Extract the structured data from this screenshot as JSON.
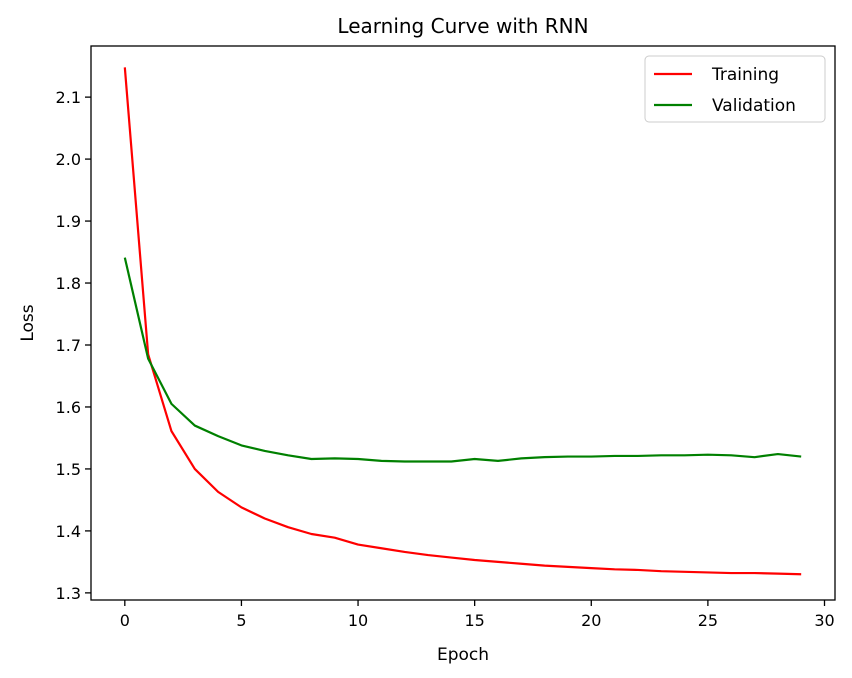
{
  "chart_data": {
    "type": "line",
    "title": "Learning Curve with RNN",
    "xlabel": "Epoch",
    "ylabel": "Loss",
    "xlim": [
      -1.45,
      30.45
    ],
    "ylim": [
      1.2885,
      2.1825
    ],
    "xticks": [
      0,
      5,
      10,
      15,
      20,
      25,
      30
    ],
    "yticks": [
      1.3,
      1.4,
      1.5,
      1.6,
      1.7,
      1.8,
      1.9,
      2.0,
      2.1
    ],
    "grid": false,
    "legend_position": "top-right",
    "x": [
      0,
      1,
      2,
      3,
      4,
      5,
      6,
      7,
      8,
      9,
      10,
      11,
      12,
      13,
      14,
      15,
      16,
      17,
      18,
      19,
      20,
      21,
      22,
      23,
      24,
      25,
      26,
      27,
      28,
      29
    ],
    "series": [
      {
        "name": "Training",
        "color": "#ff0000",
        "values": [
          2.148,
          1.685,
          1.561,
          1.5,
          1.463,
          1.438,
          1.42,
          1.406,
          1.395,
          1.389,
          1.378,
          1.372,
          1.366,
          1.361,
          1.357,
          1.353,
          1.35,
          1.347,
          1.344,
          1.342,
          1.34,
          1.338,
          1.337,
          1.335,
          1.334,
          1.333,
          1.332,
          1.332,
          1.331,
          1.33
        ]
      },
      {
        "name": "Validation",
        "color": "#008000",
        "values": [
          1.841,
          1.678,
          1.605,
          1.57,
          1.553,
          1.538,
          1.529,
          1.522,
          1.516,
          1.517,
          1.516,
          1.513,
          1.512,
          1.512,
          1.512,
          1.516,
          1.513,
          1.517,
          1.519,
          1.52,
          1.52,
          1.521,
          1.521,
          1.522,
          1.522,
          1.523,
          1.522,
          1.519,
          1.524,
          1.52
        ]
      }
    ]
  }
}
